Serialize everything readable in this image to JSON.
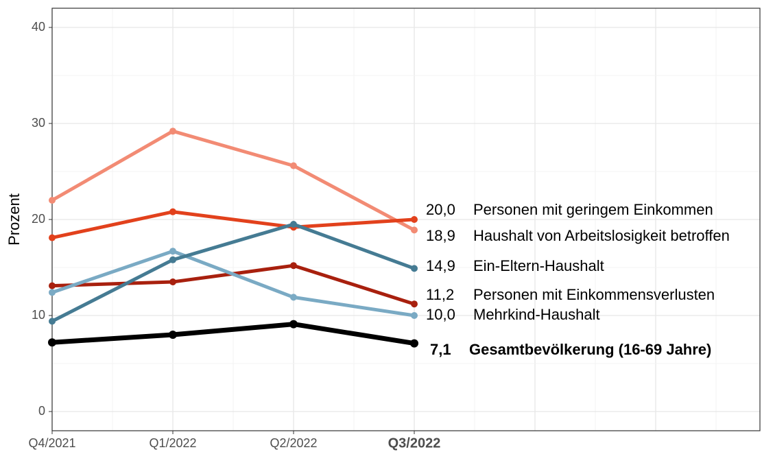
{
  "chart_data": {
    "type": "line",
    "y_label": "Prozent",
    "categories": [
      "Q4/2021",
      "Q1/2022",
      "Q2/2022",
      "Q3/2022"
    ],
    "ylim": [
      -2,
      42
    ],
    "yticks": [
      0,
      10,
      20,
      30,
      40
    ],
    "grid": true,
    "series": [
      {
        "name": "Haushalt von Arbeitslosigkeit betroffen",
        "color": "#f28b74",
        "values": [
          22.0,
          29.2,
          25.6,
          18.9
        ],
        "value_labels": [
          null,
          null,
          null,
          "18,9"
        ]
      },
      {
        "name": "Personen mit geringem Einkommen",
        "color": "#e2411c",
        "values": [
          18.1,
          20.8,
          19.2,
          20.0
        ],
        "value_labels": [
          null,
          null,
          null,
          "20,0"
        ]
      },
      {
        "name": "Personen mit Einkommensverlusten",
        "color": "#a8200e",
        "values": [
          13.1,
          13.5,
          15.2,
          11.2
        ],
        "value_labels": [
          null,
          null,
          null,
          "11,2"
        ]
      },
      {
        "name": "Mehrkind-Haushalt",
        "color": "#7aaac4",
        "values": [
          12.4,
          16.7,
          11.9,
          10.0
        ],
        "value_labels": [
          null,
          null,
          null,
          "10,0"
        ]
      },
      {
        "name": "Ein-Eltern-Haushalt",
        "color": "#457b93",
        "values": [
          9.4,
          15.8,
          19.5,
          14.9
        ],
        "value_labels": [
          null,
          null,
          null,
          "14,9"
        ]
      },
      {
        "name": "Gesamtbevölkerung (16-69 Jahre)",
        "color": "#000000",
        "values": [
          7.2,
          8.0,
          9.1,
          7.1
        ],
        "value_labels": [
          null,
          null,
          null,
          "7,1"
        ]
      }
    ]
  }
}
